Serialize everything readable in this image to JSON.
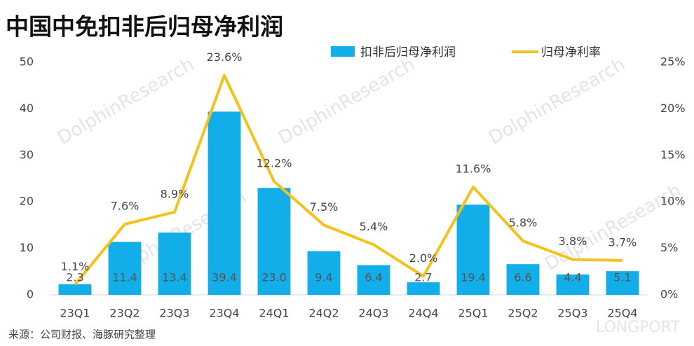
{
  "chart_data": {
    "type": "bar_line",
    "title": "中国中免扣非后归母净利润",
    "source": "来源：公司财报、海豚研究整理",
    "watermark": "DolphinResearch",
    "watermark2": "LONGPORT",
    "categories": [
      "23Q1",
      "23Q2",
      "23Q3",
      "23Q4",
      "24Q1",
      "24Q2",
      "24Q3",
      "24Q4",
      "25Q1",
      "25Q2",
      "25Q3",
      "25Q4"
    ],
    "series": [
      {
        "name": "扣非后归母净利润",
        "type": "bar",
        "color": "#12aee9",
        "values": [
          2.3,
          11.4,
          13.4,
          39.4,
          23.0,
          9.4,
          6.4,
          2.7,
          19.4,
          6.6,
          4.4,
          5.1
        ],
        "value_labels": [
          "2.3",
          "11.4",
          "13.4",
          "39.4",
          "23.0",
          "9.4",
          "6.4",
          "2.7",
          "19.4",
          "6.6",
          "4.4",
          "5.1"
        ]
      },
      {
        "name": "归母净利率",
        "type": "line",
        "axis": "y2",
        "color": "#f5c21b",
        "values": [
          1.1,
          7.6,
          8.9,
          23.6,
          12.2,
          7.5,
          5.4,
          2.0,
          11.6,
          5.8,
          3.8,
          3.7
        ],
        "value_labels": [
          "1.1%",
          "7.6%",
          "8.9%",
          "23.6%",
          "12.2%",
          "7.5%",
          "5.4%",
          "2.0%",
          "11.6%",
          "5.8%",
          "3.8%",
          "3.7%"
        ]
      }
    ],
    "ylim": [
      0,
      50
    ],
    "yticks": [
      0,
      10,
      20,
      30,
      40,
      50
    ],
    "y2lim": [
      0,
      25
    ],
    "y2ticks": [
      {
        "value": 0,
        "label": "0%"
      },
      {
        "value": 5,
        "label": "5%"
      },
      {
        "value": 10,
        "label": "10%"
      },
      {
        "value": 15,
        "label": "15%"
      },
      {
        "value": 20,
        "label": "20%"
      },
      {
        "value": 25,
        "label": "25%"
      }
    ],
    "grid": false,
    "legend": "top"
  }
}
